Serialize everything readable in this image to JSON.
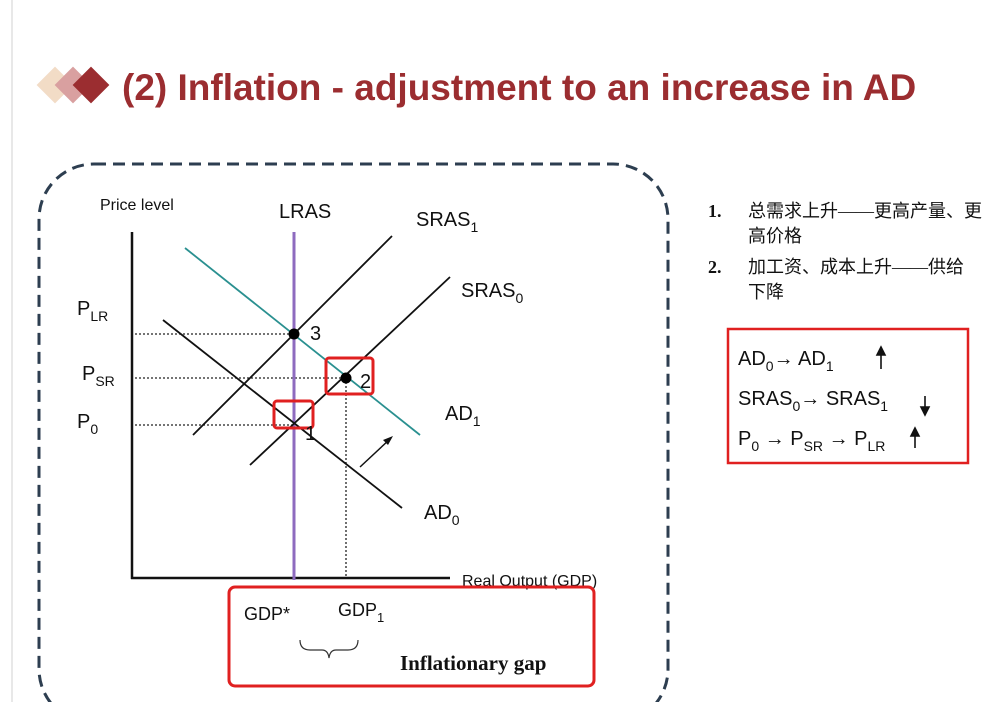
{
  "title": "(2) Inflation - adjustment to an increase in AD",
  "diagram": {
    "y_axis_label": "Price level",
    "x_axis_label": "Real Output (GDP)",
    "curves": {
      "lras": "LRAS",
      "sras1": {
        "text": "SRAS",
        "sub": "1"
      },
      "sras0": {
        "text": "SRAS",
        "sub": "0"
      },
      "ad1": {
        "text": "AD",
        "sub": "1"
      },
      "ad0": {
        "text": "AD",
        "sub": "0"
      }
    },
    "price_labels": [
      {
        "text": "P",
        "sub": "LR"
      },
      {
        "text": "P",
        "sub": "SR"
      },
      {
        "text": "P",
        "sub": "0"
      }
    ],
    "points": [
      "3",
      "2",
      "1"
    ],
    "output_labels": [
      {
        "text": "GDP*"
      },
      {
        "text": "GDP",
        "sub": "1"
      }
    ],
    "gap_label": "Inflationary gap"
  },
  "notes": [
    {
      "number": "1.",
      "text": "总需求上升——更高产量、更高价格"
    },
    {
      "number": "2.",
      "text": "加工资、成本上升——供给下降"
    }
  ],
  "summary": [
    [
      {
        "text": "AD",
        "sub": "0"
      },
      {
        "text": "→ AD",
        "sub": "1"
      }
    ],
    [
      {
        "text": "SRAS",
        "sub": "0"
      },
      {
        "text": "→ SRAS",
        "sub": "1"
      }
    ],
    [
      {
        "text": "P",
        "sub": "0"
      },
      {
        "text": " → P",
        "sub": "SR"
      },
      {
        "text": " → P",
        "sub": "LR"
      }
    ]
  ]
}
